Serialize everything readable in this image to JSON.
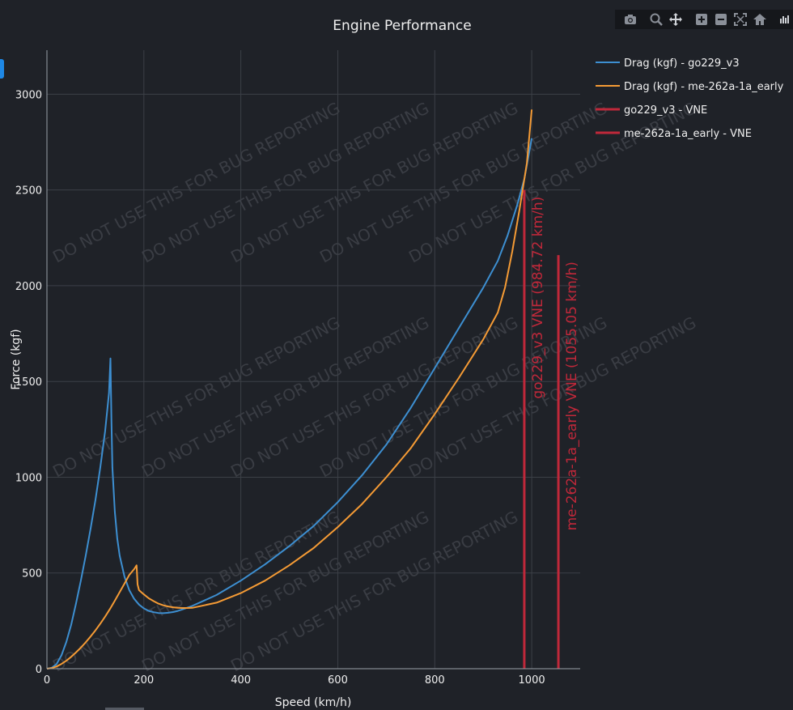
{
  "modebar": {
    "icons": [
      "camera-icon",
      "zoom-icon",
      "pan-icon",
      "zoom-in-icon",
      "zoom-out-icon",
      "autoscale-icon",
      "home-icon",
      "plotly-logo-icon"
    ]
  },
  "chart_data": {
    "type": "line",
    "title": "Engine Performance",
    "xlabel": "Speed (km/h)",
    "ylabel": "Force (kgf)",
    "xlim": [
      0,
      1100
    ],
    "ylim": [
      0,
      3230
    ],
    "x_ticks": [
      0,
      200,
      400,
      600,
      800,
      1000
    ],
    "y_ticks": [
      0,
      500,
      1000,
      1500,
      2000,
      2500,
      3000
    ],
    "grid": true,
    "legend_position": "right",
    "watermark": "DO NOT USE THIS FOR BUG REPORTING",
    "colors": {
      "bg": "#1f2228",
      "grid": "#3c4047",
      "axis_text": "#f0f0f0",
      "go229": "#3d8fd1",
      "me262": "#f59b35",
      "vne": "#c0283a",
      "watermark": "#3a3d44"
    },
    "series": [
      {
        "name": "Drag (kgf) - go229_v3",
        "color": "#3d8fd1",
        "points": [
          [
            0,
            0
          ],
          [
            10,
            5
          ],
          [
            20,
            25
          ],
          [
            30,
            70
          ],
          [
            40,
            140
          ],
          [
            50,
            230
          ],
          [
            60,
            340
          ],
          [
            70,
            460
          ],
          [
            80,
            590
          ],
          [
            90,
            730
          ],
          [
            100,
            880
          ],
          [
            110,
            1050
          ],
          [
            120,
            1240
          ],
          [
            128,
            1440
          ],
          [
            131,
            1620
          ],
          [
            133,
            1300
          ],
          [
            135,
            1050
          ],
          [
            140,
            820
          ],
          [
            145,
            680
          ],
          [
            150,
            590
          ],
          [
            160,
            480
          ],
          [
            170,
            410
          ],
          [
            180,
            365
          ],
          [
            190,
            335
          ],
          [
            200,
            315
          ],
          [
            210,
            302
          ],
          [
            220,
            295
          ],
          [
            230,
            291
          ],
          [
            240,
            290
          ],
          [
            250,
            292
          ],
          [
            260,
            296
          ],
          [
            270,
            302
          ],
          [
            280,
            310
          ],
          [
            300,
            328
          ],
          [
            350,
            385
          ],
          [
            400,
            460
          ],
          [
            450,
            545
          ],
          [
            500,
            640
          ],
          [
            550,
            745
          ],
          [
            600,
            870
          ],
          [
            650,
            1010
          ],
          [
            700,
            1170
          ],
          [
            750,
            1360
          ],
          [
            800,
            1570
          ],
          [
            850,
            1780
          ],
          [
            900,
            1990
          ],
          [
            930,
            2130
          ],
          [
            950,
            2260
          ],
          [
            970,
            2420
          ],
          [
            985,
            2560
          ],
          [
            1000,
            2770
          ]
        ]
      },
      {
        "name": "Drag (kgf) - me-262a-1a_early",
        "color": "#f59b35",
        "points": [
          [
            0,
            0
          ],
          [
            10,
            3
          ],
          [
            20,
            12
          ],
          [
            30,
            25
          ],
          [
            40,
            42
          ],
          [
            50,
            62
          ],
          [
            60,
            85
          ],
          [
            70,
            110
          ],
          [
            80,
            138
          ],
          [
            90,
            168
          ],
          [
            100,
            200
          ],
          [
            110,
            235
          ],
          [
            120,
            272
          ],
          [
            130,
            312
          ],
          [
            140,
            355
          ],
          [
            150,
            400
          ],
          [
            160,
            445
          ],
          [
            170,
            490
          ],
          [
            180,
            520
          ],
          [
            185,
            540
          ],
          [
            187,
            440
          ],
          [
            190,
            410
          ],
          [
            200,
            388
          ],
          [
            210,
            368
          ],
          [
            220,
            353
          ],
          [
            230,
            340
          ],
          [
            240,
            331
          ],
          [
            250,
            325
          ],
          [
            260,
            321
          ],
          [
            270,
            318
          ],
          [
            280,
            317
          ],
          [
            290,
            317
          ],
          [
            300,
            318
          ],
          [
            350,
            345
          ],
          [
            400,
            395
          ],
          [
            450,
            460
          ],
          [
            500,
            540
          ],
          [
            550,
            630
          ],
          [
            600,
            740
          ],
          [
            650,
            860
          ],
          [
            700,
            1000
          ],
          [
            750,
            1150
          ],
          [
            800,
            1330
          ],
          [
            850,
            1520
          ],
          [
            900,
            1720
          ],
          [
            930,
            1860
          ],
          [
            945,
            1990
          ],
          [
            960,
            2180
          ],
          [
            975,
            2400
          ],
          [
            990,
            2640
          ],
          [
            1000,
            2920
          ]
        ]
      },
      {
        "name": "go229_v3 - VNE",
        "color": "#c0283a",
        "x": 984.72,
        "top": 2500,
        "label": "go229_v3 VNE (984.72 km/h)"
      },
      {
        "name": "me-262a-1a_early - VNE",
        "color": "#c0283a",
        "x": 1055.05,
        "top": 2160,
        "label": "me-262a-1a_early VNE (1055.05 km/h)"
      }
    ]
  }
}
